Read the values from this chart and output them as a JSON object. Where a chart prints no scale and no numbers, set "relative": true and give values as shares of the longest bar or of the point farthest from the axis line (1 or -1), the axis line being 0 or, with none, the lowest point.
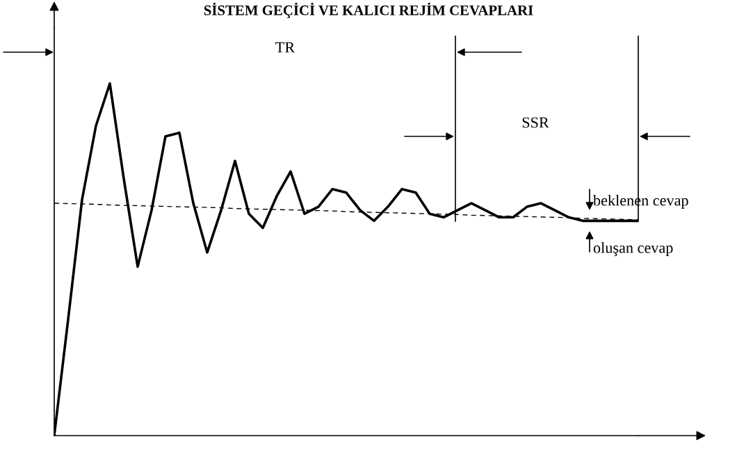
{
  "chart_data": {
    "type": "line",
    "title": "SİSTEM GEÇİCİ VE KALICI REJİM CEVAPLARI",
    "relative": true,
    "legend": false,
    "tick_labels": false,
    "marker": "none",
    "categories": [
      null,
      null,
      null,
      null,
      null,
      null,
      null,
      null,
      null,
      null,
      null,
      null,
      null,
      null,
      null,
      null,
      null,
      null,
      null,
      null,
      null,
      null,
      null,
      null,
      null,
      null,
      null,
      null,
      null,
      null,
      null,
      null,
      null,
      null,
      null,
      null,
      null,
      null,
      null,
      null,
      null,
      null,
      null
    ],
    "series": [
      {
        "color": "#000000",
        "line_style": "solid",
        "values": [
          0,
          0.33,
          0.67,
          0.88,
          1,
          0.73,
          0.48,
          0.64,
          0.85,
          0.86,
          0.66,
          0.52,
          0.64,
          0.78,
          0.63,
          0.59,
          0.68,
          0.75,
          0.63,
          0.65,
          0.7,
          0.69,
          0.64,
          0.61,
          0.65,
          0.7,
          0.69,
          0.63,
          0.62,
          0.64,
          0.66,
          0.64,
          0.62,
          0.62,
          0.65,
          0.66,
          0.64,
          0.62,
          0.61,
          0.61,
          0.61,
          0.61,
          0.61
        ]
      },
      {
        "color": "#000000",
        "line_style": "dashed",
        "values": [
          0.66,
          0.659,
          0.658,
          0.657,
          0.655,
          0.654,
          0.653,
          0.652,
          0.651,
          0.65,
          0.649,
          0.648,
          0.647,
          0.645,
          0.644,
          0.643,
          0.642,
          0.641,
          0.64,
          0.639,
          0.638,
          0.636,
          0.635,
          0.634,
          0.633,
          0.632,
          0.631,
          0.63,
          0.629,
          0.628,
          0.626,
          0.625,
          0.624,
          0.623,
          0.622,
          0.621,
          0.62,
          0.619,
          0.617,
          0.616,
          0.615,
          0.614,
          0.613
        ]
      }
    ],
    "annotations": [
      "TR",
      "SSR",
      "beklenen cevap",
      "oluşan cevap"
    ]
  }
}
